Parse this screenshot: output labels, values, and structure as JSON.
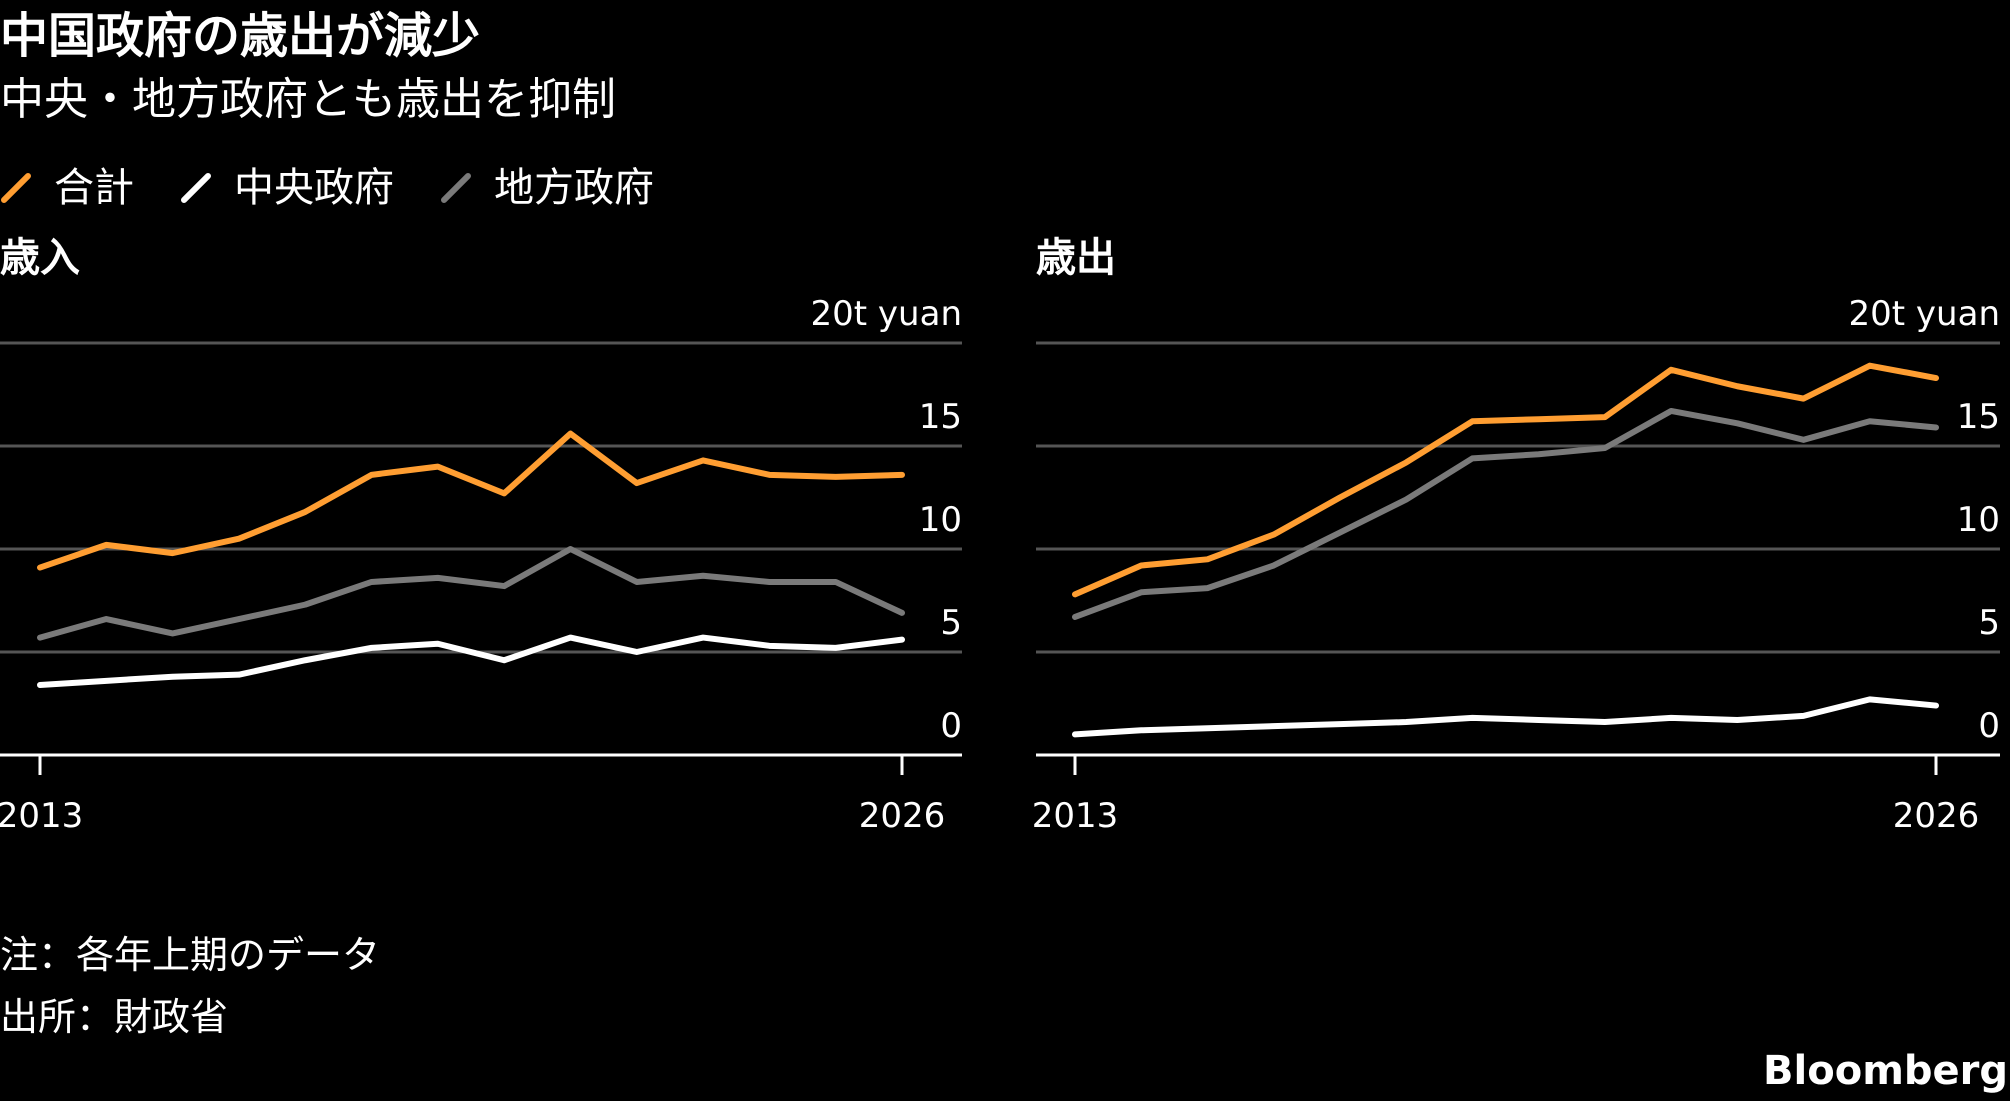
{
  "title": "中国政府の歳出が減少",
  "subtitle": "中央・地方政府とも歳出を抑制",
  "legend": [
    {
      "label": "合計",
      "color": "#ff9e32"
    },
    {
      "label": "中央政府",
      "color": "#ffffff"
    },
    {
      "label": "地方政府",
      "color": "#7a7a7a"
    }
  ],
  "chart_data": [
    {
      "type": "line",
      "title": "歳入",
      "y_unit_label": "20t yuan",
      "ylim": [
        0,
        20
      ],
      "y_ticks": [
        "0",
        "5",
        "10",
        "15"
      ],
      "x": [
        2013,
        2014,
        2015,
        2016,
        2017,
        2018,
        2019,
        2020,
        2021,
        2022,
        2023,
        2024,
        2025,
        2026
      ],
      "x_tick_labels": [
        "2013",
        "2026"
      ],
      "grid": true,
      "series": [
        {
          "name": "合計",
          "color": "#ff9e32",
          "values": [
            9.1,
            10.2,
            9.8,
            10.5,
            11.8,
            13.6,
            14.0,
            12.7,
            15.6,
            13.2,
            14.3,
            13.6,
            13.5,
            13.6
          ]
        },
        {
          "name": "中央政府",
          "color": "#ffffff",
          "values": [
            3.4,
            3.6,
            3.8,
            3.9,
            4.6,
            5.2,
            5.4,
            4.6,
            5.7,
            5.0,
            5.7,
            5.3,
            5.2,
            5.6
          ]
        },
        {
          "name": "地方政府",
          "color": "#7a7a7a",
          "values": [
            5.7,
            6.6,
            5.9,
            6.6,
            7.3,
            8.4,
            8.6,
            8.2,
            10.0,
            8.4,
            8.7,
            8.4,
            8.4,
            6.9
          ]
        }
      ]
    },
    {
      "type": "line",
      "title": "歳出",
      "y_unit_label": "20t yuan",
      "ylim": [
        0,
        20
      ],
      "y_ticks": [
        "0",
        "5",
        "10",
        "15"
      ],
      "x": [
        2013,
        2014,
        2015,
        2016,
        2017,
        2018,
        2019,
        2020,
        2021,
        2022,
        2023,
        2024,
        2025,
        2026
      ],
      "x_tick_labels": [
        "2013",
        "2026"
      ],
      "grid": true,
      "series": [
        {
          "name": "合計",
          "color": "#ff9e32",
          "values": [
            7.8,
            9.2,
            9.5,
            10.7,
            12.5,
            14.2,
            16.2,
            16.3,
            16.4,
            18.7,
            17.9,
            17.3,
            18.9,
            18.3
          ]
        },
        {
          "name": "中央政府",
          "color": "#ffffff",
          "values": [
            1.0,
            1.2,
            1.3,
            1.4,
            1.5,
            1.6,
            1.8,
            1.7,
            1.6,
            1.8,
            1.7,
            1.9,
            2.7,
            2.4
          ]
        },
        {
          "name": "地方政府",
          "color": "#7a7a7a",
          "values": [
            6.7,
            7.9,
            8.1,
            9.2,
            10.8,
            12.4,
            14.4,
            14.6,
            14.9,
            16.7,
            16.1,
            15.3,
            16.2,
            15.9
          ]
        }
      ]
    }
  ],
  "notes": {
    "note": "注：各年上期のデータ",
    "source": "出所：財政省"
  },
  "brand": "Bloomberg"
}
